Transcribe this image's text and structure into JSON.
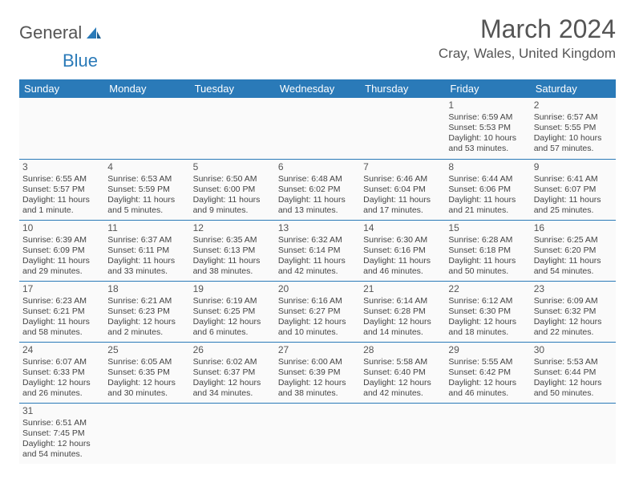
{
  "logo": {
    "text1": "General",
    "text2": "Blue"
  },
  "title": "March 2024",
  "location": "Cray, Wales, United Kingdom",
  "colors": {
    "header_bg": "#2a7ab8",
    "header_text": "#ffffff",
    "border": "#2a7ab8",
    "cell_bg": "#fafafa",
    "text": "#444444",
    "title_color": "#555555"
  },
  "day_headers": [
    "Sunday",
    "Monday",
    "Tuesday",
    "Wednesday",
    "Thursday",
    "Friday",
    "Saturday"
  ],
  "weeks": [
    [
      null,
      null,
      null,
      null,
      null,
      {
        "n": "1",
        "sr": "Sunrise: 6:59 AM",
        "ss": "Sunset: 5:53 PM",
        "dl": "Daylight: 10 hours and 53 minutes."
      },
      {
        "n": "2",
        "sr": "Sunrise: 6:57 AM",
        "ss": "Sunset: 5:55 PM",
        "dl": "Daylight: 10 hours and 57 minutes."
      }
    ],
    [
      {
        "n": "3",
        "sr": "Sunrise: 6:55 AM",
        "ss": "Sunset: 5:57 PM",
        "dl": "Daylight: 11 hours and 1 minute."
      },
      {
        "n": "4",
        "sr": "Sunrise: 6:53 AM",
        "ss": "Sunset: 5:59 PM",
        "dl": "Daylight: 11 hours and 5 minutes."
      },
      {
        "n": "5",
        "sr": "Sunrise: 6:50 AM",
        "ss": "Sunset: 6:00 PM",
        "dl": "Daylight: 11 hours and 9 minutes."
      },
      {
        "n": "6",
        "sr": "Sunrise: 6:48 AM",
        "ss": "Sunset: 6:02 PM",
        "dl": "Daylight: 11 hours and 13 minutes."
      },
      {
        "n": "7",
        "sr": "Sunrise: 6:46 AM",
        "ss": "Sunset: 6:04 PM",
        "dl": "Daylight: 11 hours and 17 minutes."
      },
      {
        "n": "8",
        "sr": "Sunrise: 6:44 AM",
        "ss": "Sunset: 6:06 PM",
        "dl": "Daylight: 11 hours and 21 minutes."
      },
      {
        "n": "9",
        "sr": "Sunrise: 6:41 AM",
        "ss": "Sunset: 6:07 PM",
        "dl": "Daylight: 11 hours and 25 minutes."
      }
    ],
    [
      {
        "n": "10",
        "sr": "Sunrise: 6:39 AM",
        "ss": "Sunset: 6:09 PM",
        "dl": "Daylight: 11 hours and 29 minutes."
      },
      {
        "n": "11",
        "sr": "Sunrise: 6:37 AM",
        "ss": "Sunset: 6:11 PM",
        "dl": "Daylight: 11 hours and 33 minutes."
      },
      {
        "n": "12",
        "sr": "Sunrise: 6:35 AM",
        "ss": "Sunset: 6:13 PM",
        "dl": "Daylight: 11 hours and 38 minutes."
      },
      {
        "n": "13",
        "sr": "Sunrise: 6:32 AM",
        "ss": "Sunset: 6:14 PM",
        "dl": "Daylight: 11 hours and 42 minutes."
      },
      {
        "n": "14",
        "sr": "Sunrise: 6:30 AM",
        "ss": "Sunset: 6:16 PM",
        "dl": "Daylight: 11 hours and 46 minutes."
      },
      {
        "n": "15",
        "sr": "Sunrise: 6:28 AM",
        "ss": "Sunset: 6:18 PM",
        "dl": "Daylight: 11 hours and 50 minutes."
      },
      {
        "n": "16",
        "sr": "Sunrise: 6:25 AM",
        "ss": "Sunset: 6:20 PM",
        "dl": "Daylight: 11 hours and 54 minutes."
      }
    ],
    [
      {
        "n": "17",
        "sr": "Sunrise: 6:23 AM",
        "ss": "Sunset: 6:21 PM",
        "dl": "Daylight: 11 hours and 58 minutes."
      },
      {
        "n": "18",
        "sr": "Sunrise: 6:21 AM",
        "ss": "Sunset: 6:23 PM",
        "dl": "Daylight: 12 hours and 2 minutes."
      },
      {
        "n": "19",
        "sr": "Sunrise: 6:19 AM",
        "ss": "Sunset: 6:25 PM",
        "dl": "Daylight: 12 hours and 6 minutes."
      },
      {
        "n": "20",
        "sr": "Sunrise: 6:16 AM",
        "ss": "Sunset: 6:27 PM",
        "dl": "Daylight: 12 hours and 10 minutes."
      },
      {
        "n": "21",
        "sr": "Sunrise: 6:14 AM",
        "ss": "Sunset: 6:28 PM",
        "dl": "Daylight: 12 hours and 14 minutes."
      },
      {
        "n": "22",
        "sr": "Sunrise: 6:12 AM",
        "ss": "Sunset: 6:30 PM",
        "dl": "Daylight: 12 hours and 18 minutes."
      },
      {
        "n": "23",
        "sr": "Sunrise: 6:09 AM",
        "ss": "Sunset: 6:32 PM",
        "dl": "Daylight: 12 hours and 22 minutes."
      }
    ],
    [
      {
        "n": "24",
        "sr": "Sunrise: 6:07 AM",
        "ss": "Sunset: 6:33 PM",
        "dl": "Daylight: 12 hours and 26 minutes."
      },
      {
        "n": "25",
        "sr": "Sunrise: 6:05 AM",
        "ss": "Sunset: 6:35 PM",
        "dl": "Daylight: 12 hours and 30 minutes."
      },
      {
        "n": "26",
        "sr": "Sunrise: 6:02 AM",
        "ss": "Sunset: 6:37 PM",
        "dl": "Daylight: 12 hours and 34 minutes."
      },
      {
        "n": "27",
        "sr": "Sunrise: 6:00 AM",
        "ss": "Sunset: 6:39 PM",
        "dl": "Daylight: 12 hours and 38 minutes."
      },
      {
        "n": "28",
        "sr": "Sunrise: 5:58 AM",
        "ss": "Sunset: 6:40 PM",
        "dl": "Daylight: 12 hours and 42 minutes."
      },
      {
        "n": "29",
        "sr": "Sunrise: 5:55 AM",
        "ss": "Sunset: 6:42 PM",
        "dl": "Daylight: 12 hours and 46 minutes."
      },
      {
        "n": "30",
        "sr": "Sunrise: 5:53 AM",
        "ss": "Sunset: 6:44 PM",
        "dl": "Daylight: 12 hours and 50 minutes."
      }
    ],
    [
      {
        "n": "31",
        "sr": "Sunrise: 6:51 AM",
        "ss": "Sunset: 7:45 PM",
        "dl": "Daylight: 12 hours and 54 minutes."
      },
      null,
      null,
      null,
      null,
      null,
      null
    ]
  ]
}
